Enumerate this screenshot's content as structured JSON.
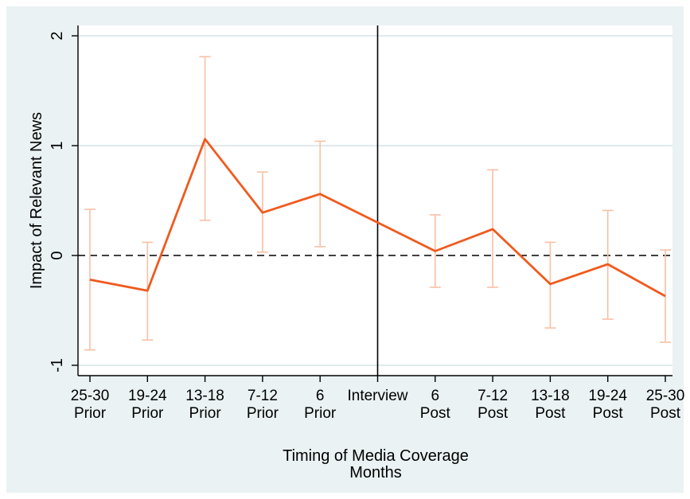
{
  "chart_data": {
    "type": "line",
    "title": "",
    "xlabel": "Timing of Media Coverage",
    "xlabel_sub": "Months",
    "ylabel": "Impact of Relevant News",
    "ylim": [
      -1,
      2
    ],
    "yticks": [
      -1,
      0,
      1,
      2
    ],
    "grid": "horizontal",
    "categories": [
      [
        "25-30",
        "Prior"
      ],
      [
        "19-24",
        "Prior"
      ],
      [
        "13-18",
        "Prior"
      ],
      [
        "7-12",
        "Prior"
      ],
      [
        "6",
        "Prior"
      ],
      [
        "Interview",
        ""
      ],
      [
        "6",
        "Post"
      ],
      [
        "7-12",
        "Post"
      ],
      [
        "13-18",
        "Post"
      ],
      [
        "19-24",
        "Post"
      ],
      [
        "25-30",
        "Post"
      ]
    ],
    "series": [
      {
        "values": [
          -0.22,
          -0.32,
          1.06,
          0.39,
          0.56,
          0.3,
          0.04,
          0.24,
          -0.26,
          -0.08,
          -0.37
        ],
        "ci_low": [
          -0.86,
          -0.77,
          0.32,
          0.03,
          0.08,
          null,
          -0.29,
          -0.29,
          -0.66,
          -0.58,
          -0.79
        ],
        "ci_high": [
          0.42,
          0.12,
          1.81,
          0.76,
          1.04,
          null,
          0.37,
          0.78,
          0.12,
          0.41,
          0.05
        ]
      }
    ],
    "reference_line_y": 0,
    "reference_line_x": "Interview",
    "colors": {
      "line": "#f05a1e",
      "error_bars": "#f8c0a6",
      "grid": "#d6e4e6",
      "panel": "#eaf2f3"
    }
  }
}
